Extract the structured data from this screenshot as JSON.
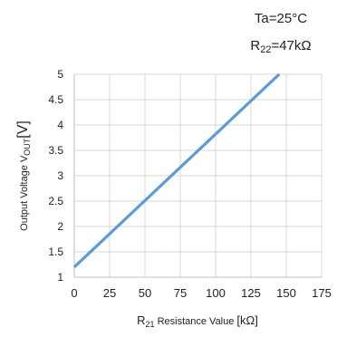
{
  "chart_data": {
    "type": "line",
    "annotations": [
      {
        "parts": [
          {
            "text": "Ta=25",
            "sub": false
          },
          {
            "text": "°C",
            "sub": false
          }
        ]
      },
      {
        "parts": [
          {
            "text": "R",
            "sub": false
          },
          {
            "text": "22",
            "sub": true
          },
          {
            "text": "=47kΩ",
            "sub": false
          }
        ]
      }
    ],
    "ylabel": {
      "parts": [
        {
          "text": "Output Voltage V",
          "sub": false,
          "size": "small"
        },
        {
          "text": "OUT",
          "sub": true
        },
        {
          "text": "[V]",
          "sub": false,
          "size": "large"
        }
      ]
    },
    "xlabel": {
      "parts": [
        {
          "text": "R",
          "sub": false
        },
        {
          "text": "21",
          "sub": true
        },
        {
          "text": " Resistance Value ",
          "sub": false,
          "size": "small"
        },
        {
          "text": "[kΩ]",
          "sub": false
        }
      ]
    },
    "xlim": [
      0,
      175
    ],
    "ylim": [
      1,
      5
    ],
    "x_ticks": [
      "0",
      "25",
      "50",
      "75",
      "100",
      "125",
      "150",
      "175"
    ],
    "y_ticks": [
      "1",
      "1.5",
      "2",
      "2.5",
      "3",
      "3.5",
      "4",
      "4.5",
      "5"
    ],
    "grid": true,
    "series": [
      {
        "x": [
          0,
          145
        ],
        "y": [
          1.2,
          5.0
        ],
        "color": "#5b9bd5"
      }
    ],
    "colors": {
      "grid": "#d9d9d9",
      "axis": "#bfbfbf",
      "text": "#222222"
    }
  }
}
